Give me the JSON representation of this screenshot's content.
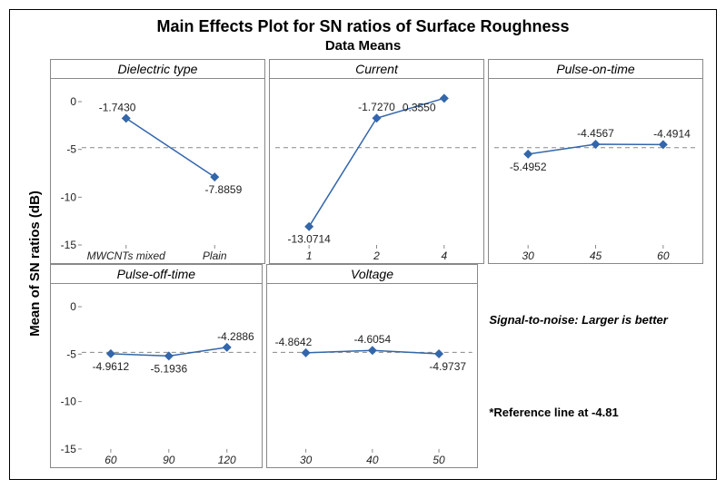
{
  "title": "Main Effects Plot for SN ratios of Surface Roughness",
  "subtitle": "Data Means",
  "ylabel": "Mean of SN ratios (dB)",
  "reference_value": -4.81,
  "ylim": [
    -15,
    2
  ],
  "yticks": [
    0,
    -5,
    -10,
    -15
  ],
  "line_color": "#3366aa",
  "marker_color": "#3366aa",
  "grid_color": "#888888",
  "background_color": "#ffffff",
  "note1": "Signal-to-noise: Larger is better",
  "note2": "*Reference line at -4.81",
  "panels": [
    {
      "title": "Dielectric type",
      "xlabels": [
        "MWCNTs mixed",
        "Plain"
      ],
      "yvalues": [
        -1.743,
        -7.8859
      ],
      "val_labels": [
        "-1.7430",
        "-7.8859"
      ]
    },
    {
      "title": "Current",
      "xlabels": [
        "1",
        "2",
        "4"
      ],
      "yvalues": [
        -13.0714,
        -1.727,
        0.355
      ],
      "val_labels": [
        "-13.0714",
        "-1.7270",
        "0.3550"
      ]
    },
    {
      "title": "Pulse-on-time",
      "xlabels": [
        "30",
        "45",
        "60"
      ],
      "yvalues": [
        -5.4952,
        -4.4567,
        -4.4914
      ],
      "val_labels": [
        "-5.4952",
        "-4.4567",
        "-4.4914"
      ]
    },
    {
      "title": "Pulse-off-time",
      "xlabels": [
        "60",
        "90",
        "120"
      ],
      "yvalues": [
        -4.9612,
        -5.1936,
        -4.2886
      ],
      "val_labels": [
        "-4.9612",
        "-5.1936",
        "-4.2886"
      ]
    },
    {
      "title": "Voltage",
      "xlabels": [
        "30",
        "40",
        "50"
      ],
      "yvalues": [
        -4.8642,
        -4.6054,
        -4.9737
      ],
      "val_labels": [
        "-4.8642",
        "-4.6054",
        "-4.9737"
      ]
    }
  ]
}
